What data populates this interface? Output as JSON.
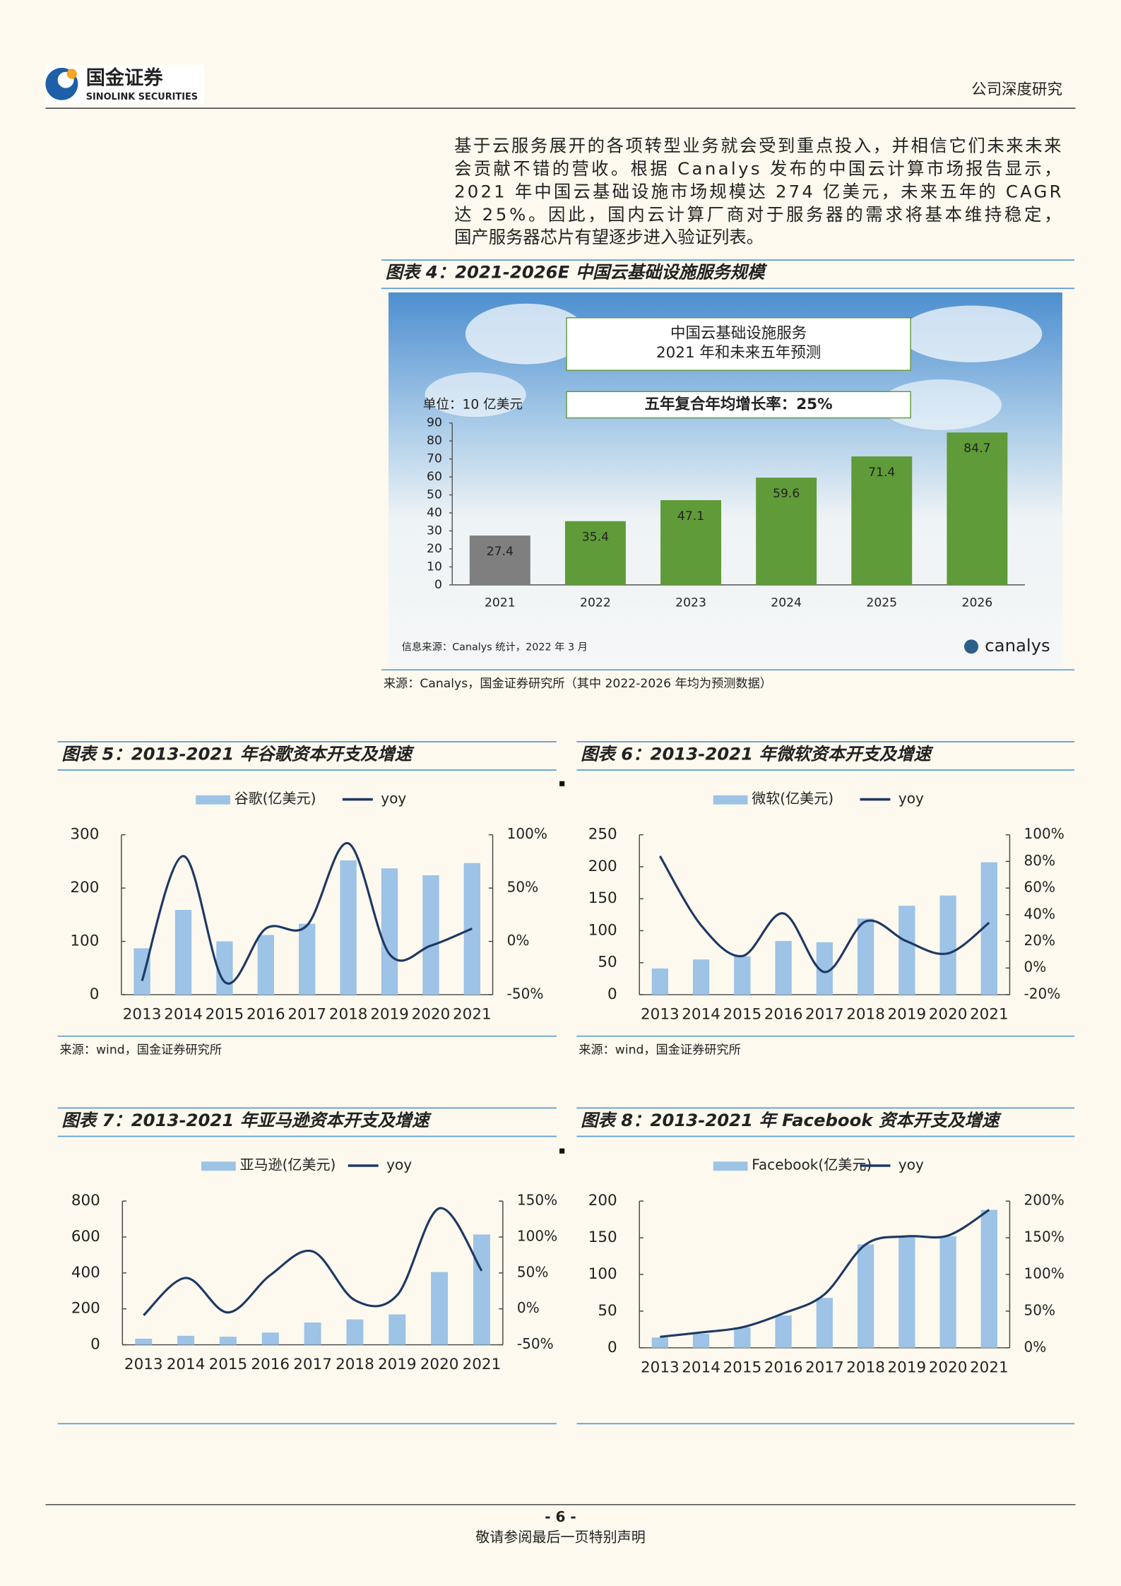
{
  "header": {
    "logo_cn": "国金证券",
    "logo_en": "SINOLINK SECURITIES",
    "section": "公司深度研究"
  },
  "body": {
    "lines": [
      "基于云服务展开的各项转型业务就会受到重点投入，并相信它们未来未来",
      "会贡献不错的营收。根据 Canalys 发布的中国云计算市场报告显示，",
      "2021 年中国云基础设施市场规模达 274 亿美元，未来五年的 CAGR",
      "达 25%。因此，国内云计算厂商对于服务器的需求将基本维持稳定，",
      "国产服务器芯片有望逐步进入验证列表。"
    ]
  },
  "figures": [
    {
      "title": "图表 4：2021-2026E 中国云基础设施服务规模",
      "source": "来源：Canalys，国金证券研究所（其中 2022-2026 年均为预测数据）",
      "chart": {
        "type": "bar",
        "title": "中国云基础设施服务",
        "subtitle": "2021 年和未来五年预测",
        "annotation": "五年复合年均增长率：25%",
        "unit": "单位：10 亿美元",
        "note": "信息来源：Canalys 统计，2022 年 3 月",
        "brand": "canalys",
        "categories": [
          "2021",
          "2022",
          "2023",
          "2024",
          "2025",
          "2026"
        ],
        "values": [
          27.4,
          35.4,
          47.1,
          59.6,
          71.4,
          84.7
        ],
        "colors": [
          "#7f7f7f",
          "#5f9b38",
          "#5f9b38",
          "#5f9b38",
          "#5f9b38",
          "#5f9b38"
        ],
        "ylim": [
          0,
          90
        ],
        "yticks": [
          0,
          10,
          20,
          30,
          40,
          50,
          60,
          70,
          80,
          90
        ]
      }
    },
    {
      "title": "图表 5：2013-2021 年谷歌资本开支及增速",
      "source": "来源：wind，国金证券研究所",
      "chart": {
        "type": "bar-line",
        "categories": [
          "2013",
          "2014",
          "2015",
          "2016",
          "2017",
          "2018",
          "2019",
          "2020",
          "2021"
        ],
        "series": [
          {
            "name": "谷歌(亿美元)",
            "color": "#9dc3e6",
            "values": [
              87,
              159,
              100,
              112,
              133,
              252,
              237,
              224,
              247
            ]
          },
          {
            "name": "yoy",
            "color": "#1f3864",
            "axis": "y2",
            "values": [
              -37,
              80,
              -38,
              12,
              15,
              92,
              -12,
              -4,
              12
            ]
          }
        ],
        "ylim": [
          0,
          300
        ],
        "yticks": [
          0,
          100,
          200,
          300
        ],
        "y2lim": [
          -50,
          100
        ],
        "y2ticks": [
          {
            "value": -50,
            "label": "-50%"
          },
          {
            "value": 0,
            "label": "0%"
          },
          {
            "value": 50,
            "label": "50%"
          },
          {
            "value": 100,
            "label": "100%"
          }
        ]
      }
    },
    {
      "title": "图表 6：2013-2021 年微软资本开支及增速",
      "source": "来源：wind，国金证券研究所",
      "chart": {
        "type": "bar-line",
        "categories": [
          "2013",
          "2014",
          "2015",
          "2016",
          "2017",
          "2018",
          "2019",
          "2020",
          "2021"
        ],
        "series": [
          {
            "name": "微软(亿美元)",
            "color": "#9dc3e6",
            "values": [
              41,
              55,
              60,
              84,
              82,
              119,
              139,
              155,
              207
            ]
          },
          {
            "name": "yoy",
            "color": "#1f3864",
            "axis": "y2",
            "values": [
              84,
              32,
              9,
              41,
              -3,
              35,
              20,
              11,
              34
            ]
          }
        ],
        "ylim": [
          0,
          250
        ],
        "yticks": [
          0,
          50,
          100,
          150,
          200,
          250
        ],
        "y2lim": [
          -20,
          100
        ],
        "y2ticks": [
          {
            "value": -20,
            "label": "-20%"
          },
          {
            "value": 0,
            "label": "0%"
          },
          {
            "value": 20,
            "label": "20%"
          },
          {
            "value": 40,
            "label": "40%"
          },
          {
            "value": 60,
            "label": "60%"
          },
          {
            "value": 80,
            "label": "80%"
          },
          {
            "value": 100,
            "label": "100%"
          }
        ]
      }
    },
    {
      "title": "图表 7：2013-2021 年亚马逊资本开支及增速",
      "chart": {
        "type": "bar-line",
        "categories": [
          "2013",
          "2014",
          "2015",
          "2016",
          "2017",
          "2018",
          "2019",
          "2020",
          "2021"
        ],
        "series": [
          {
            "name": "亚马逊(亿美元)",
            "color": "#9dc3e6",
            "values": [
              34,
              50,
              45,
              68,
              124,
              141,
              169,
              405,
              614
            ]
          },
          {
            "name": "yoy",
            "color": "#1f3864",
            "axis": "y2",
            "values": [
              -9,
              43,
              -5,
              47,
              80,
              12,
              19,
              140,
              53
            ]
          }
        ],
        "ylim": [
          0,
          800
        ],
        "yticks": [
          0,
          200,
          400,
          600,
          800
        ],
        "y2lim": [
          -50,
          150
        ],
        "y2ticks": [
          {
            "value": -50,
            "label": "-50%"
          },
          {
            "value": 0,
            "label": "0%"
          },
          {
            "value": 50,
            "label": "50%"
          },
          {
            "value": 100,
            "label": "100%"
          },
          {
            "value": 150,
            "label": "150%"
          }
        ]
      }
    },
    {
      "title": "图表 8：2013-2021 年 Facebook 资本开支及增速",
      "chart": {
        "type": "bar-line",
        "categories": [
          "2013",
          "2014",
          "2015",
          "2016",
          "2017",
          "2018",
          "2019",
          "2020",
          "2021"
        ],
        "series": [
          {
            "name": "Facebook(亿美元)",
            "color": "#9dc3e6",
            "values": [
              14,
              19,
              28,
              44,
              68,
              141,
              153,
              152,
              188
            ]
          },
          {
            "name": "yoy",
            "color": "#1f3864",
            "axis": "y2",
            "values": [
              15,
              21,
              28,
              47,
              73,
              141,
              152,
              153,
              188
            ]
          }
        ],
        "ylim": [
          0,
          200
        ],
        "yticks": [
          0,
          50,
          100,
          150,
          200
        ],
        "y2lim": [
          0,
          200
        ],
        "y2ticks": [
          {
            "value": 0,
            "label": "0%"
          },
          {
            "value": 50,
            "label": "50%"
          },
          {
            "value": 100,
            "label": "100%"
          },
          {
            "value": 150,
            "label": "150%"
          },
          {
            "value": 200,
            "label": "200%"
          }
        ]
      }
    }
  ],
  "footer": {
    "page": "- 6 -",
    "notice": "敬请参阅最后一页特别声明"
  }
}
